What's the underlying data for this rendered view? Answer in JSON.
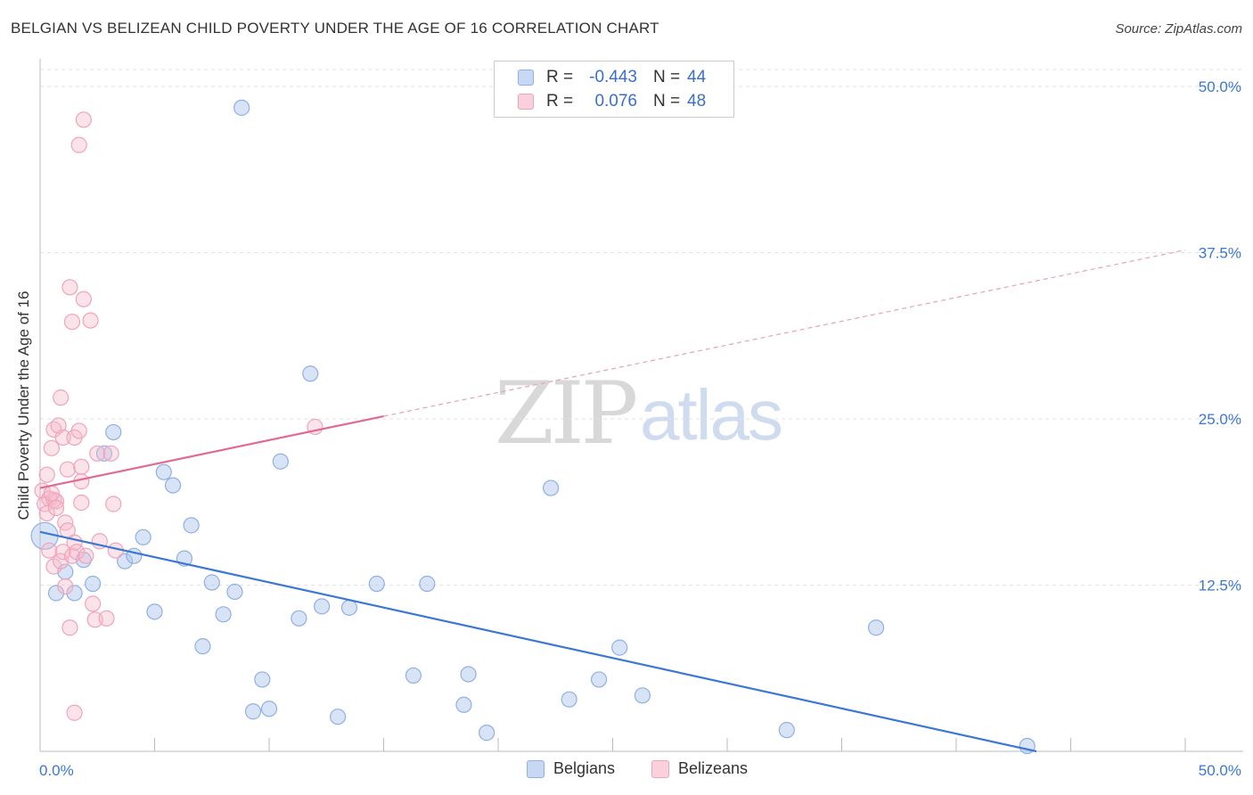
{
  "header": {
    "title": "BELGIAN VS BELIZEAN CHILD POVERTY UNDER THE AGE OF 16 CORRELATION CHART",
    "source": "Source: ZipAtlas.com"
  },
  "watermark": {
    "zip": "ZIP",
    "atlas": "atlas"
  },
  "legend": {
    "rows": [
      {
        "r_label": "R =",
        "r_value": "-0.443",
        "n_label": "N =",
        "n_value": "44",
        "color": "#a8c4ec"
      },
      {
        "r_label": "R =",
        "r_value": "0.076",
        "n_label": "N =",
        "n_value": "48",
        "color": "#f5b8cb"
      }
    ]
  },
  "bottom_legend": {
    "belgians": "Belgians",
    "belizeans": "Belizeans"
  },
  "chart_data": {
    "type": "scatter",
    "title": "BELGIAN VS BELIZEAN CHILD POVERTY UNDER THE AGE OF 16 CORRELATION CHART",
    "xlabel": "",
    "ylabel": "Child Poverty Under the Age of 16",
    "xlim": [
      0,
      50
    ],
    "ylim": [
      0,
      50
    ],
    "x_tick_labels": [
      "0.0%",
      "50.0%"
    ],
    "y_tick_labels": [
      "12.5%",
      "25.0%",
      "37.5%",
      "50.0%"
    ],
    "y_ticks": [
      12.5,
      25.0,
      37.5,
      50.0
    ],
    "grid": "horizontal dashed",
    "legend_position": "top-center",
    "colors": {
      "belgians": "#3a78d4",
      "belizeans": "#e06a93"
    },
    "series": [
      {
        "name": "Belgians",
        "color": "#3a78d4",
        "fill": "#a8c4ec",
        "points": [
          [
            0.2,
            16.2
          ],
          [
            0.7,
            11.9
          ],
          [
            1.1,
            13.5
          ],
          [
            1.5,
            11.9
          ],
          [
            1.9,
            14.4
          ],
          [
            2.3,
            12.6
          ],
          [
            2.8,
            22.4
          ],
          [
            3.2,
            24.0
          ],
          [
            3.7,
            14.3
          ],
          [
            4.1,
            14.7
          ],
          [
            4.5,
            16.1
          ],
          [
            5.0,
            10.5
          ],
          [
            5.4,
            21.0
          ],
          [
            5.8,
            20.0
          ],
          [
            6.3,
            14.5
          ],
          [
            6.6,
            17.0
          ],
          [
            7.1,
            7.9
          ],
          [
            7.5,
            12.7
          ],
          [
            8.0,
            10.3
          ],
          [
            8.5,
            12.0
          ],
          [
            8.8,
            48.4
          ],
          [
            9.3,
            3.0
          ],
          [
            9.7,
            5.4
          ],
          [
            10.0,
            3.2
          ],
          [
            10.5,
            21.8
          ],
          [
            11.3,
            10.0
          ],
          [
            11.8,
            28.4
          ],
          [
            12.3,
            10.9
          ],
          [
            13.0,
            2.6
          ],
          [
            13.5,
            10.8
          ],
          [
            14.7,
            12.6
          ],
          [
            16.3,
            5.7
          ],
          [
            16.9,
            12.6
          ],
          [
            18.5,
            3.5
          ],
          [
            18.7,
            5.8
          ],
          [
            19.5,
            1.4
          ],
          [
            22.3,
            19.8
          ],
          [
            23.1,
            3.9
          ],
          [
            24.4,
            5.4
          ],
          [
            25.3,
            7.8
          ],
          [
            26.3,
            4.2
          ],
          [
            32.6,
            1.6
          ],
          [
            36.5,
            9.3
          ],
          [
            43.1,
            0.4
          ]
        ],
        "trend": {
          "x": [
            0.0,
            43.5
          ],
          "y": [
            16.5,
            0.0
          ]
        }
      },
      {
        "name": "Belizeans",
        "color": "#e06a93",
        "fill": "#f5b8cb",
        "points": [
          [
            0.1,
            19.6
          ],
          [
            0.2,
            18.6
          ],
          [
            0.3,
            17.9
          ],
          [
            0.3,
            20.8
          ],
          [
            0.4,
            15.1
          ],
          [
            0.4,
            19.0
          ],
          [
            0.5,
            22.8
          ],
          [
            0.6,
            13.9
          ],
          [
            0.6,
            18.9
          ],
          [
            0.6,
            24.2
          ],
          [
            0.7,
            18.8
          ],
          [
            0.7,
            18.3
          ],
          [
            0.8,
            24.5
          ],
          [
            0.9,
            14.3
          ],
          [
            0.9,
            26.6
          ],
          [
            1.0,
            15.0
          ],
          [
            1.0,
            23.6
          ],
          [
            1.1,
            12.4
          ],
          [
            1.1,
            17.2
          ],
          [
            1.2,
            21.2
          ],
          [
            1.2,
            16.6
          ],
          [
            1.3,
            9.3
          ],
          [
            1.3,
            34.9
          ],
          [
            1.4,
            14.7
          ],
          [
            1.4,
            32.3
          ],
          [
            1.5,
            23.6
          ],
          [
            1.5,
            2.9
          ],
          [
            1.5,
            15.7
          ],
          [
            1.6,
            15.0
          ],
          [
            1.7,
            24.1
          ],
          [
            1.7,
            45.6
          ],
          [
            1.8,
            20.3
          ],
          [
            1.8,
            18.7
          ],
          [
            1.8,
            21.4
          ],
          [
            1.9,
            47.5
          ],
          [
            1.9,
            34.0
          ],
          [
            2.0,
            14.7
          ],
          [
            2.2,
            32.4
          ],
          [
            2.3,
            11.1
          ],
          [
            2.4,
            9.9
          ],
          [
            2.5,
            22.4
          ],
          [
            2.6,
            15.8
          ],
          [
            2.9,
            10.0
          ],
          [
            3.1,
            22.4
          ],
          [
            3.2,
            18.6
          ],
          [
            3.3,
            15.1
          ],
          [
            12.0,
            24.4
          ],
          [
            0.5,
            19.4
          ]
        ],
        "trend": {
          "x": [
            0.0,
            15.0
          ],
          "y": [
            19.8,
            25.2
          ]
        },
        "trend_extension": {
          "x": [
            15.0,
            50.0
          ],
          "y": [
            25.2,
            37.7
          ]
        }
      }
    ]
  }
}
